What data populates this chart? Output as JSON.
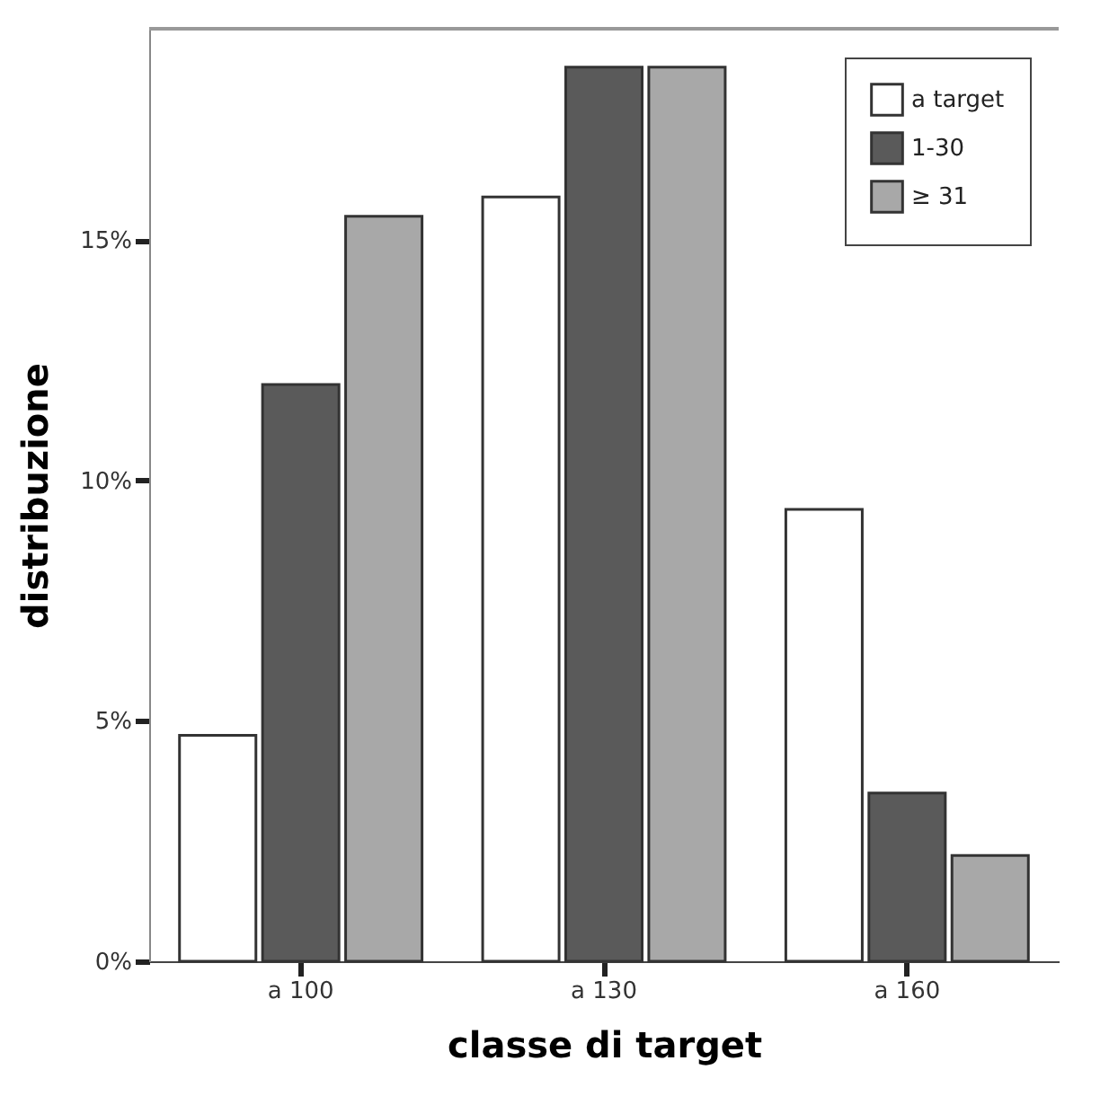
{
  "chart_data": {
    "type": "bar",
    "xlabel": "classe di target",
    "ylabel": "distribuzione",
    "categories": [
      "a 100",
      "a 130",
      "a 160"
    ],
    "series": [
      {
        "name": "a target",
        "color": "#ffffff",
        "values": [
          4.7,
          15.9,
          9.4
        ]
      },
      {
        "name": "1-30",
        "color": "#5a5a5a",
        "values": [
          12.0,
          18.6,
          3.5
        ]
      },
      {
        "name": "≥ 31",
        "color": "#a8a8a8",
        "values": [
          15.5,
          18.6,
          2.2
        ]
      }
    ],
    "ylim": [
      0,
      19.4
    ],
    "yticks": [
      {
        "value": 0,
        "label": "0%"
      },
      {
        "value": 5,
        "label": "5%"
      },
      {
        "value": 10,
        "label": "10%"
      },
      {
        "value": 15,
        "label": "15%"
      }
    ],
    "grid": false,
    "legend": "top right"
  }
}
